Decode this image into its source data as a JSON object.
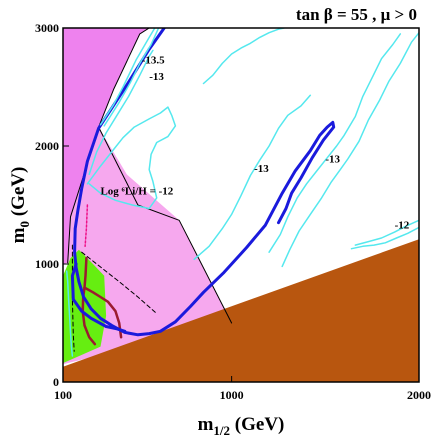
{
  "chart_data": {
    "type": "contour",
    "title": "tan β = 55 ,  μ > 0",
    "xlabel": "m",
    "xlabel_sub": "1/2",
    "xlabel_unit": " (GeV)",
    "ylabel": "m",
    "ylabel_sub": "0",
    "ylabel_unit": " (GeV)",
    "xlim": [
      100,
      2000
    ],
    "ylim": [
      0,
      3000
    ],
    "x_ticks": [
      {
        "value": 100,
        "label": "100"
      },
      {
        "value": 1000,
        "label": "1000"
      },
      {
        "value": 2000,
        "label": "2000"
      }
    ],
    "y_ticks": [
      {
        "value": 0,
        "label": "0"
      },
      {
        "value": 1000,
        "label": "1000"
      },
      {
        "value": 2000,
        "label": "2000"
      },
      {
        "value": 3000,
        "label": "3000"
      }
    ],
    "grid": false,
    "colors": {
      "magenta_region": "#ee82ee",
      "pink_region": "#f6a8ee",
      "brown_region": "#b8560f",
      "green_region": "#66ee11",
      "cyan_contours": "#55e8ee",
      "blue_contour": "#1a1adc",
      "dark_red_curve": "#9b1b30",
      "dotted_line": "#ee1188"
    },
    "regions": [
      {
        "name": "magenta",
        "color": "#ee82ee",
        "points": [
          [
            100,
            1000
          ],
          [
            125,
            1010
          ],
          [
            140,
            1400
          ],
          [
            220,
            1800
          ],
          [
            290,
            2160
          ],
          [
            370,
            2480
          ],
          [
            510,
            2950
          ],
          [
            560,
            3000
          ],
          [
            100,
            3000
          ]
        ]
      },
      {
        "name": "pink",
        "color": "#f6a8ee",
        "points": [
          [
            125,
            1010
          ],
          [
            140,
            1400
          ],
          [
            220,
            1800
          ],
          [
            290,
            2160
          ],
          [
            440,
            1760
          ],
          [
            720,
            1370
          ],
          [
            1000,
            500
          ],
          [
            100,
            150
          ]
        ]
      },
      {
        "name": "green",
        "color": "#66ee11",
        "points": [
          [
            100,
            900
          ],
          [
            140,
            1050
          ],
          [
            185,
            1120
          ],
          [
            260,
            1000
          ],
          [
            320,
            900
          ],
          [
            330,
            560
          ],
          [
            300,
            300
          ],
          [
            100,
            160
          ]
        ]
      },
      {
        "name": "brown",
        "color": "#b8560f",
        "points": [
          [
            100,
            130
          ],
          [
            2000,
            1210
          ],
          [
            2000,
            0
          ],
          [
            100,
            0
          ]
        ]
      }
    ],
    "lines": [
      {
        "name": "region-border",
        "color": "#000000",
        "width": 1,
        "dash": "",
        "points": [
          [
            125,
            1010
          ],
          [
            140,
            1400
          ],
          [
            220,
            1800
          ],
          [
            290,
            2160
          ],
          [
            370,
            2480
          ],
          [
            510,
            2950
          ],
          [
            560,
            3000
          ]
        ]
      },
      {
        "name": "pink-edge-right",
        "color": "#000000",
        "width": 1,
        "dash": "",
        "points": [
          [
            290,
            2160
          ],
          [
            500,
            1500
          ],
          [
            720,
            1370
          ],
          [
            1000,
            500
          ]
        ]
      },
      {
        "name": "dashed-line",
        "color": "#000000",
        "width": 1,
        "dash": "4,3",
        "points": [
          [
            200,
            1100
          ],
          [
            400,
            850
          ],
          [
            500,
            720
          ],
          [
            600,
            580
          ]
        ]
      },
      {
        "name": "green-edge-dashed",
        "color": "#000000",
        "width": 1,
        "dash": "4,3",
        "points": [
          [
            150,
            1160
          ],
          [
            150,
            1000
          ],
          [
            150,
            700
          ],
          [
            155,
            400
          ],
          [
            160,
            260
          ]
        ]
      },
      {
        "name": "dotted-line",
        "color": "#ee1188",
        "width": 1.5,
        "dash": "2,2",
        "points": [
          [
            230,
            1500
          ],
          [
            225,
            1300
          ],
          [
            218,
            1150
          ]
        ]
      },
      {
        "name": "dark-red-curve",
        "color": "#9b1b30",
        "width": 2.5,
        "dash": "",
        "points": [
          [
            225,
            1050
          ],
          [
            220,
            900
          ],
          [
            215,
            800
          ],
          [
            208,
            720
          ],
          [
            205,
            600
          ],
          [
            215,
            480
          ],
          [
            240,
            380
          ],
          [
            270,
            320
          ]
        ]
      },
      {
        "name": "dark-red-branch",
        "color": "#9b1b30",
        "width": 2.5,
        "dash": "",
        "points": [
          [
            215,
            800
          ],
          [
            260,
            760
          ],
          [
            300,
            720
          ],
          [
            340,
            680
          ],
          [
            380,
            600
          ],
          [
            400,
            500
          ],
          [
            410,
            380
          ]
        ]
      },
      {
        "name": "blue-contour-main",
        "color": "#1a1adc",
        "width": 3,
        "dash": "",
        "points": [
          [
            640,
            3000
          ],
          [
            560,
            2820
          ],
          [
            430,
            2490
          ],
          [
            290,
            2150
          ],
          [
            230,
            1870
          ],
          [
            200,
            1640
          ],
          [
            180,
            1460
          ],
          [
            165,
            1300
          ],
          [
            162,
            1100
          ],
          [
            170,
            970
          ],
          [
            185,
            850
          ],
          [
            210,
            720
          ],
          [
            250,
            620
          ],
          [
            300,
            540
          ],
          [
            360,
            480
          ],
          [
            430,
            420
          ],
          [
            500,
            400
          ],
          [
            560,
            410
          ],
          [
            620,
            430
          ],
          [
            700,
            510
          ],
          [
            780,
            640
          ],
          [
            850,
            760
          ],
          [
            960,
            930
          ],
          [
            1080,
            1140
          ],
          [
            1180,
            1330
          ],
          [
            1270,
            1600
          ],
          [
            1340,
            1790
          ],
          [
            1420,
            1960
          ],
          [
            1470,
            2090
          ],
          [
            1510,
            2160
          ],
          [
            1540,
            2200
          ],
          [
            1545,
            2160
          ],
          [
            1490,
            2050
          ],
          [
            1430,
            1900
          ],
          [
            1370,
            1730
          ],
          [
            1320,
            1600
          ],
          [
            1290,
            1470
          ],
          [
            1250,
            1350
          ]
        ]
      },
      {
        "name": "blue-contour-lower",
        "color": "#1a1adc",
        "width": 3,
        "dash": "",
        "points": [
          [
            170,
            1000
          ],
          [
            150,
            900
          ],
          [
            155,
            700
          ],
          [
            200,
            600
          ],
          [
            250,
            540
          ],
          [
            330,
            470
          ],
          [
            390,
            450
          ],
          [
            430,
            430
          ]
        ]
      },
      {
        "name": "cyan-contour-upper-left",
        "color": "#55e8ee",
        "width": 1.5,
        "dash": "",
        "points": [
          [
            300,
            2180
          ],
          [
            370,
            2350
          ],
          [
            420,
            2500
          ],
          [
            490,
            2730
          ],
          [
            560,
            2920
          ],
          [
            590,
            3000
          ]
        ]
      },
      {
        "name": "cyan-contour-upper-left-2",
        "color": "#55e8ee",
        "width": 1.5,
        "dash": "",
        "points": [
          [
            320,
            2170
          ],
          [
            400,
            2370
          ],
          [
            460,
            2540
          ],
          [
            510,
            2700
          ],
          [
            570,
            2860
          ],
          [
            610,
            3000
          ]
        ]
      },
      {
        "name": "cyan-contour-mid-left",
        "color": "#55e8ee",
        "width": 1.5,
        "dash": "",
        "points": [
          [
            240,
            1760
          ],
          [
            280,
            1950
          ],
          [
            330,
            2110
          ],
          [
            380,
            2240
          ],
          [
            450,
            2420
          ],
          [
            510,
            2600
          ],
          [
            560,
            2760
          ],
          [
            580,
            2810
          ]
        ]
      },
      {
        "name": "cyan-loop-center",
        "color": "#55e8ee",
        "width": 1.5,
        "dash": "",
        "points": [
          [
            230,
            1680
          ],
          [
            300,
            1830
          ],
          [
            360,
            1950
          ],
          [
            420,
            2070
          ],
          [
            480,
            2160
          ],
          [
            560,
            2230
          ],
          [
            620,
            2280
          ],
          [
            660,
            2330
          ],
          [
            680,
            2260
          ],
          [
            700,
            2170
          ],
          [
            660,
            2080
          ],
          [
            600,
            2030
          ],
          [
            570,
            1930
          ],
          [
            560,
            1800
          ],
          [
            580,
            1700
          ],
          [
            600,
            1560
          ],
          [
            560,
            1470
          ],
          [
            470,
            1500
          ],
          [
            380,
            1540
          ],
          [
            300,
            1600
          ],
          [
            240,
            1680
          ]
        ]
      },
      {
        "name": "cyan-contour-right-1",
        "color": "#55e8ee",
        "width": 1.5,
        "dash": "",
        "points": [
          [
            850,
            2530
          ],
          [
            900,
            2600
          ],
          [
            950,
            2700
          ],
          [
            1000,
            2780
          ],
          [
            1050,
            2830
          ],
          [
            1100,
            2870
          ],
          [
            1150,
            2920
          ],
          [
            1200,
            2960
          ],
          [
            1250,
            2990
          ],
          [
            1280,
            3000
          ]
        ]
      },
      {
        "name": "cyan-contour-right-2",
        "color": "#55e8ee",
        "width": 1.5,
        "dash": "",
        "points": [
          [
            1200,
            1100
          ],
          [
            1260,
            1250
          ],
          [
            1300,
            1400
          ],
          [
            1350,
            1560
          ],
          [
            1400,
            1680
          ],
          [
            1460,
            1800
          ],
          [
            1510,
            1900
          ],
          [
            1560,
            2000
          ],
          [
            1600,
            2090
          ],
          [
            1660,
            2250
          ],
          [
            1700,
            2420
          ],
          [
            1750,
            2580
          ],
          [
            1800,
            2740
          ],
          [
            1860,
            2860
          ],
          [
            1900,
            2950
          ]
        ]
      },
      {
        "name": "cyan-contour-right-3",
        "color": "#55e8ee",
        "width": 1.5,
        "dash": "",
        "points": [
          [
            1270,
            980
          ],
          [
            1310,
            1120
          ],
          [
            1360,
            1280
          ],
          [
            1420,
            1420
          ],
          [
            1480,
            1560
          ],
          [
            1530,
            1690
          ],
          [
            1580,
            1800
          ],
          [
            1620,
            1890
          ],
          [
            1680,
            2040
          ],
          [
            1730,
            2220
          ],
          [
            1790,
            2390
          ],
          [
            1840,
            2550
          ],
          [
            1900,
            2700
          ],
          [
            1960,
            2880
          ],
          [
            2000,
            2960
          ]
        ]
      },
      {
        "name": "cyan-contour-lower-right",
        "color": "#55e8ee",
        "width": 1.5,
        "dash": "",
        "points": [
          [
            1640,
            1130
          ],
          [
            1700,
            1150
          ],
          [
            1760,
            1160
          ],
          [
            1820,
            1180
          ],
          [
            1880,
            1220
          ],
          [
            1940,
            1260
          ],
          [
            2000,
            1310
          ]
        ]
      },
      {
        "name": "cyan-contour-lower-right-2",
        "color": "#55e8ee",
        "width": 1.5,
        "dash": "",
        "points": [
          [
            1660,
            1160
          ],
          [
            1730,
            1190
          ],
          [
            1800,
            1220
          ],
          [
            1870,
            1270
          ],
          [
            1930,
            1320
          ],
          [
            2000,
            1370
          ]
        ]
      },
      {
        "name": "cyan-contour-mid-right",
        "color": "#55e8ee",
        "width": 1.5,
        "dash": "",
        "points": [
          [
            800,
            1040
          ],
          [
            880,
            1150
          ],
          [
            950,
            1300
          ],
          [
            1000,
            1420
          ],
          [
            1050,
            1580
          ],
          [
            1100,
            1750
          ],
          [
            1150,
            1880
          ],
          [
            1200,
            2000
          ],
          [
            1250,
            2150
          ],
          [
            1300,
            2260
          ],
          [
            1370,
            2340
          ],
          [
            1420,
            2430
          ]
        ]
      },
      {
        "name": "cyan-left-bottom",
        "color": "#55e8ee",
        "width": 1.5,
        "dash": "",
        "points": [
          [
            120,
            940
          ],
          [
            125,
            850
          ],
          [
            130,
            700
          ],
          [
            135,
            560
          ],
          [
            140,
            420
          ],
          [
            145,
            300
          ],
          [
            150,
            220
          ]
        ]
      }
    ],
    "annotations": [
      {
        "text": "-13.5",
        "x": 520,
        "y": 2700
      },
      {
        "text": "-13",
        "x": 560,
        "y": 2560
      },
      {
        "text": "-13",
        "x": 1120,
        "y": 1780
      },
      {
        "text": "-13",
        "x": 1500,
        "y": 1860
      },
      {
        "text": "-12",
        "x": 1870,
        "y": 1300
      },
      {
        "text": "Log ⁶Li/H = -12",
        "x": 300,
        "y": 1590
      }
    ]
  }
}
